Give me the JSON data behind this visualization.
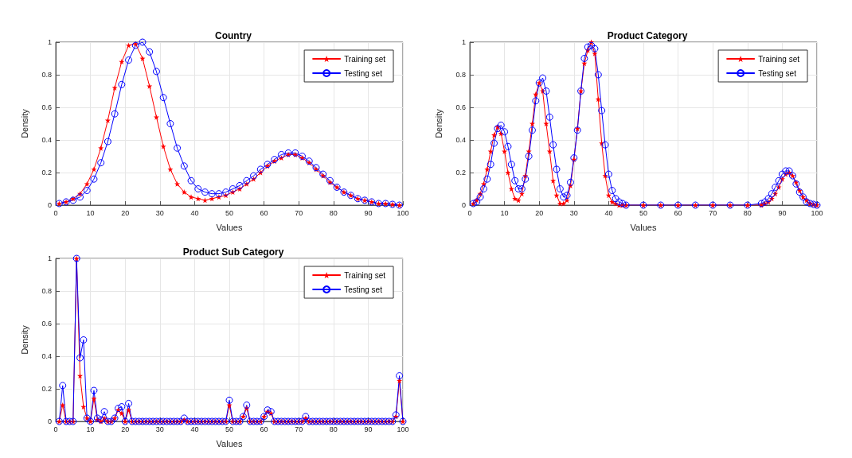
{
  "chart_data": [
    {
      "type": "line",
      "title": "Country",
      "xlabel": "Values",
      "ylabel": "Density",
      "xlim": [
        0,
        100
      ],
      "ylim": [
        0,
        1
      ],
      "xticks": [
        0,
        10,
        20,
        30,
        40,
        50,
        60,
        70,
        80,
        90,
        100
      ],
      "yticks": [
        0,
        0.2,
        0.4,
        0.6,
        0.8,
        1
      ],
      "grid": true,
      "legend": "top right",
      "series": [
        {
          "name": "Training set",
          "color": "#ff0000",
          "marker": "star",
          "x": [
            1,
            3,
            5,
            7,
            9,
            11,
            13,
            15,
            17,
            19,
            21,
            23,
            25,
            27,
            29,
            31,
            33,
            35,
            37,
            39,
            41,
            43,
            45,
            47,
            49,
            51,
            53,
            55,
            57,
            59,
            61,
            63,
            65,
            67,
            69,
            71,
            73,
            75,
            77,
            79,
            81,
            83,
            85,
            87,
            89,
            91,
            93,
            95,
            97,
            99
          ],
          "values": [
            0.01,
            0.02,
            0.04,
            0.07,
            0.13,
            0.22,
            0.35,
            0.52,
            0.72,
            0.88,
            0.98,
            0.99,
            0.9,
            0.73,
            0.54,
            0.36,
            0.22,
            0.13,
            0.08,
            0.05,
            0.04,
            0.03,
            0.04,
            0.05,
            0.06,
            0.08,
            0.1,
            0.13,
            0.16,
            0.2,
            0.24,
            0.27,
            0.29,
            0.31,
            0.31,
            0.29,
            0.26,
            0.22,
            0.18,
            0.14,
            0.11,
            0.08,
            0.06,
            0.04,
            0.03,
            0.02,
            0.01,
            0.01,
            0.005,
            0
          ]
        },
        {
          "name": "Testing set",
          "color": "#0000ff",
          "marker": "circle",
          "x": [
            1,
            3,
            5,
            7,
            9,
            11,
            13,
            15,
            17,
            19,
            21,
            23,
            25,
            27,
            29,
            31,
            33,
            35,
            37,
            39,
            41,
            43,
            45,
            47,
            49,
            51,
            53,
            55,
            57,
            59,
            61,
            63,
            65,
            67,
            69,
            71,
            73,
            75,
            77,
            79,
            81,
            83,
            85,
            87,
            89,
            91,
            93,
            95,
            97,
            99
          ],
          "values": [
            0.01,
            0.02,
            0.03,
            0.05,
            0.09,
            0.16,
            0.26,
            0.39,
            0.56,
            0.74,
            0.89,
            0.98,
            1.0,
            0.94,
            0.82,
            0.66,
            0.5,
            0.35,
            0.24,
            0.15,
            0.1,
            0.08,
            0.07,
            0.07,
            0.08,
            0.1,
            0.12,
            0.15,
            0.18,
            0.22,
            0.25,
            0.28,
            0.31,
            0.32,
            0.32,
            0.3,
            0.27,
            0.23,
            0.19,
            0.15,
            0.11,
            0.08,
            0.06,
            0.04,
            0.03,
            0.02,
            0.01,
            0.01,
            0.005,
            0
          ]
        }
      ]
    },
    {
      "type": "line",
      "title": "Product Category",
      "xlabel": "Values",
      "ylabel": "Density",
      "xlim": [
        0,
        100
      ],
      "ylim": [
        0,
        1
      ],
      "xticks": [
        0,
        10,
        20,
        30,
        40,
        50,
        60,
        70,
        80,
        90,
        100
      ],
      "yticks": [
        0,
        0.2,
        0.4,
        0.6,
        0.8,
        1
      ],
      "grid": true,
      "legend": "top right",
      "series": [
        {
          "name": "Training set",
          "color": "#ff0000",
          "marker": "star",
          "x": [
            1,
            2,
            3,
            4,
            5,
            6,
            7,
            8,
            9,
            10,
            11,
            12,
            13,
            14,
            15,
            16,
            17,
            18,
            19,
            20,
            21,
            22,
            23,
            24,
            25,
            26,
            27,
            28,
            29,
            30,
            31,
            32,
            33,
            34,
            35,
            36,
            37,
            38,
            39,
            40,
            41,
            42,
            43,
            44,
            45,
            50,
            55,
            60,
            65,
            70,
            75,
            80,
            84,
            85,
            86,
            87,
            88,
            89,
            90,
            91,
            92,
            93,
            94,
            95,
            96,
            97,
            98,
            99,
            100
          ],
          "values": [
            0.01,
            0.03,
            0.07,
            0.13,
            0.22,
            0.33,
            0.43,
            0.48,
            0.44,
            0.33,
            0.2,
            0.1,
            0.04,
            0.03,
            0.07,
            0.18,
            0.33,
            0.5,
            0.68,
            0.75,
            0.7,
            0.5,
            0.33,
            0.15,
            0.06,
            0.01,
            0.01,
            0.03,
            0.12,
            0.28,
            0.47,
            0.7,
            0.87,
            0.95,
            1.0,
            0.93,
            0.65,
            0.38,
            0.18,
            0.06,
            0.02,
            0.01,
            0,
            0,
            0,
            0,
            0,
            0,
            0,
            0,
            0,
            0,
            0,
            0.01,
            0.02,
            0.04,
            0.07,
            0.11,
            0.16,
            0.19,
            0.2,
            0.18,
            0.14,
            0.09,
            0.05,
            0.03,
            0.01,
            0.005,
            0
          ]
        },
        {
          "name": "Testing set",
          "color": "#0000ff",
          "marker": "circle",
          "x": [
            1,
            2,
            3,
            4,
            5,
            6,
            7,
            8,
            9,
            10,
            11,
            12,
            13,
            14,
            15,
            16,
            17,
            18,
            19,
            20,
            21,
            22,
            23,
            24,
            25,
            26,
            27,
            28,
            29,
            30,
            31,
            32,
            33,
            34,
            35,
            36,
            37,
            38,
            39,
            40,
            41,
            42,
            43,
            44,
            45,
            50,
            55,
            60,
            65,
            70,
            75,
            80,
            84,
            85,
            86,
            87,
            88,
            89,
            90,
            91,
            92,
            93,
            94,
            95,
            96,
            97,
            98,
            99,
            100
          ],
          "values": [
            0.01,
            0.02,
            0.05,
            0.1,
            0.16,
            0.25,
            0.38,
            0.47,
            0.49,
            0.45,
            0.36,
            0.25,
            0.15,
            0.1,
            0.1,
            0.16,
            0.3,
            0.46,
            0.64,
            0.75,
            0.78,
            0.7,
            0.54,
            0.37,
            0.22,
            0.1,
            0.05,
            0.06,
            0.14,
            0.29,
            0.46,
            0.7,
            0.9,
            0.97,
            0.98,
            0.96,
            0.8,
            0.58,
            0.37,
            0.19,
            0.09,
            0.04,
            0.02,
            0.01,
            0,
            0,
            0,
            0,
            0,
            0,
            0,
            0,
            0.01,
            0.02,
            0.04,
            0.07,
            0.11,
            0.15,
            0.19,
            0.21,
            0.21,
            0.18,
            0.13,
            0.08,
            0.05,
            0.02,
            0.01,
            0.005,
            0
          ]
        }
      ]
    },
    {
      "type": "line",
      "title": "Product Sub Category",
      "xlabel": "Values",
      "ylabel": "Density",
      "xlim": [
        0,
        100
      ],
      "ylim": [
        0,
        1
      ],
      "xticks": [
        0,
        10,
        20,
        30,
        40,
        50,
        60,
        70,
        80,
        90,
        100
      ],
      "yticks": [
        0,
        0.2,
        0.4,
        0.6,
        0.8,
        1
      ],
      "grid": true,
      "legend": "top right",
      "series": [
        {
          "name": "Training set",
          "color": "#ff0000",
          "marker": "star",
          "x": [
            1,
            2,
            3,
            4,
            5,
            6,
            7,
            8,
            9,
            10,
            11,
            12,
            13,
            14,
            15,
            16,
            17,
            18,
            19,
            20,
            21,
            22,
            23,
            24,
            25,
            26,
            27,
            28,
            29,
            30,
            31,
            32,
            33,
            34,
            35,
            36,
            37,
            38,
            39,
            40,
            41,
            42,
            43,
            44,
            45,
            46,
            47,
            48,
            49,
            50,
            51,
            52,
            53,
            54,
            55,
            56,
            57,
            58,
            59,
            60,
            61,
            62,
            63,
            64,
            65,
            66,
            67,
            68,
            69,
            70,
            71,
            72,
            73,
            74,
            75,
            76,
            77,
            78,
            79,
            80,
            81,
            82,
            83,
            84,
            85,
            86,
            87,
            88,
            89,
            90,
            91,
            92,
            93,
            94,
            95,
            96,
            97,
            98,
            99,
            100
          ],
          "values": [
            0,
            0.1,
            0,
            0,
            0,
            1.0,
            0.28,
            0.09,
            0.02,
            0,
            0.14,
            0.01,
            0,
            0.02,
            0,
            0,
            0.02,
            0.07,
            0.05,
            0,
            0.07,
            0,
            0,
            0,
            0,
            0,
            0,
            0,
            0,
            0,
            0,
            0,
            0,
            0,
            0,
            0,
            0.01,
            0,
            0,
            0,
            0,
            0,
            0,
            0,
            0,
            0,
            0,
            0,
            0,
            0.1,
            0,
            0,
            0,
            0.03,
            0.08,
            0,
            0,
            0,
            0,
            0.03,
            0.06,
            0.05,
            0,
            0,
            0,
            0,
            0,
            0,
            0,
            0,
            0,
            0.02,
            0,
            0,
            0,
            0,
            0,
            0,
            0,
            0,
            0,
            0,
            0,
            0,
            0,
            0,
            0,
            0,
            0,
            0,
            0,
            0,
            0,
            0,
            0,
            0,
            0,
            0.03,
            0.25,
            0
          ]
        },
        {
          "name": "Testing set",
          "color": "#0000ff",
          "marker": "circle",
          "x": [
            1,
            2,
            3,
            4,
            5,
            6,
            7,
            8,
            9,
            10,
            11,
            12,
            13,
            14,
            15,
            16,
            17,
            18,
            19,
            20,
            21,
            22,
            23,
            24,
            25,
            26,
            27,
            28,
            29,
            30,
            31,
            32,
            33,
            34,
            35,
            36,
            37,
            38,
            39,
            40,
            41,
            42,
            43,
            44,
            45,
            46,
            47,
            48,
            49,
            50,
            51,
            52,
            53,
            54,
            55,
            56,
            57,
            58,
            59,
            60,
            61,
            62,
            63,
            64,
            65,
            66,
            67,
            68,
            69,
            70,
            71,
            72,
            73,
            74,
            75,
            76,
            77,
            78,
            79,
            80,
            81,
            82,
            83,
            84,
            85,
            86,
            87,
            88,
            89,
            90,
            91,
            92,
            93,
            94,
            95,
            96,
            97,
            98,
            99,
            100
          ],
          "values": [
            0,
            0.22,
            0,
            0,
            0,
            1.0,
            0.39,
            0.5,
            0.02,
            0,
            0.19,
            0.02,
            0.01,
            0.06,
            0,
            0,
            0.02,
            0.08,
            0.09,
            0,
            0.11,
            0,
            0,
            0,
            0,
            0,
            0,
            0,
            0,
            0,
            0,
            0,
            0,
            0,
            0,
            0,
            0.02,
            0,
            0,
            0,
            0,
            0,
            0,
            0,
            0,
            0,
            0,
            0,
            0,
            0.13,
            0,
            0,
            0,
            0.03,
            0.1,
            0,
            0,
            0,
            0,
            0.03,
            0.07,
            0.06,
            0,
            0,
            0,
            0,
            0,
            0,
            0,
            0,
            0,
            0.03,
            0,
            0,
            0,
            0,
            0,
            0,
            0,
            0,
            0,
            0,
            0,
            0,
            0,
            0,
            0,
            0,
            0,
            0,
            0,
            0,
            0,
            0,
            0,
            0,
            0,
            0.04,
            0.28,
            0
          ]
        }
      ]
    }
  ]
}
